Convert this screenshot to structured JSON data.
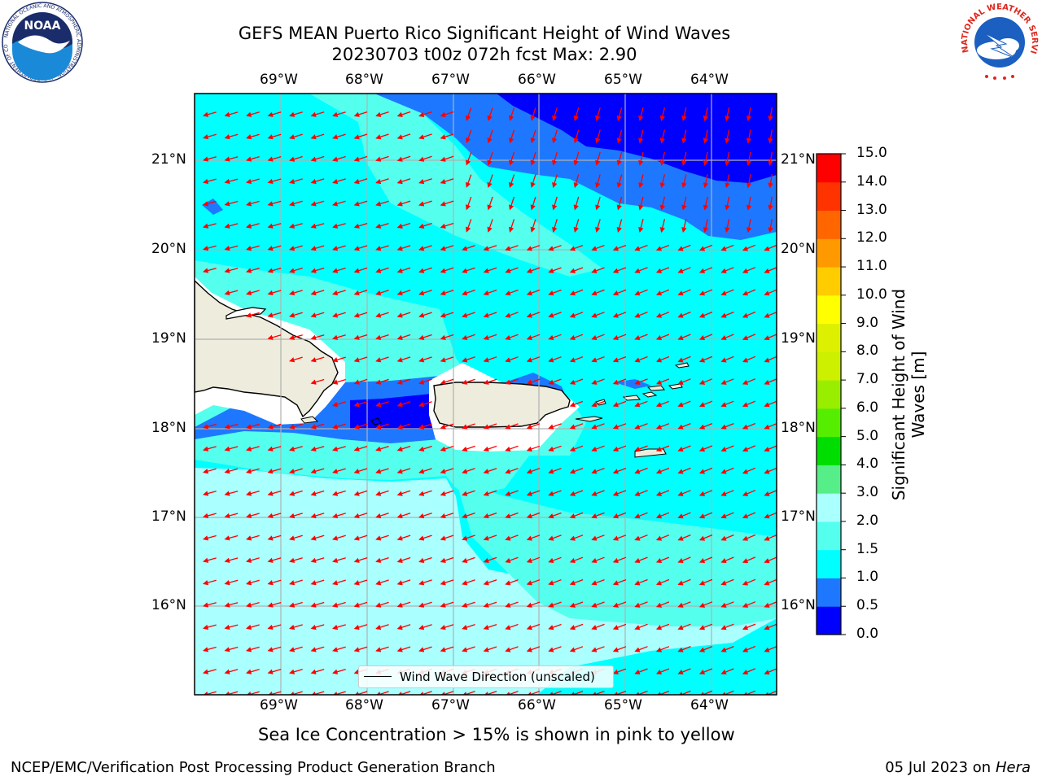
{
  "header": {
    "title_line1": "GEFS MEAN Puerto Rico Significant Height of Wind Waves",
    "title_line2": "20230703 t00z 072h fcst   Max: 2.90"
  },
  "map": {
    "lon_labels": [
      "69°W",
      "68°W",
      "67°W",
      "66°W",
      "65°W",
      "64°W"
    ],
    "lat_labels": [
      "21°N",
      "20°N",
      "19°N",
      "18°N",
      "17°N",
      "16°N"
    ],
    "lon_range": [
      -70.0,
      -63.25
    ],
    "lat_range": [
      15.0,
      21.75
    ],
    "gridlines": true,
    "arrow_color": "#ff0000",
    "wave_direction": "from east-northeast",
    "land_color": "#eeecdc",
    "land_labels": [
      "Hispaniola",
      "Puerto Rico",
      "Virgin Islands"
    ]
  },
  "legend": {
    "label": "Wind Wave Direction (unscaled)",
    "position": "bottom-center"
  },
  "colorbar": {
    "title": "Significant Height of Wind Waves [m]",
    "tick_labels": [
      "0.0",
      "0.5",
      "1.0",
      "1.5",
      "2.0",
      "3.0",
      "4.0",
      "5.0",
      "6.0",
      "7.0",
      "8.0",
      "9.0",
      "10.0",
      "11.0",
      "12.0",
      "13.0",
      "14.0",
      "15.0"
    ],
    "colors": [
      "#0000ff",
      "#1e78ff",
      "#00ffff",
      "#55ffee",
      "#aaffff",
      "#55ee88",
      "#00dd00",
      "#55ee00",
      "#99ee00",
      "#ccf000",
      "#ddf000",
      "#ffff00",
      "#ffcc00",
      "#ff9900",
      "#ff6600",
      "#ff3300",
      "#ff0000"
    ]
  },
  "notes": {
    "sea_ice": "Sea Ice Concentration > 15% is shown in pink to yellow"
  },
  "footer": {
    "left": "NCEP/EMC/Verification Post Processing Product Generation Branch",
    "right_date": "05 Jul 2023 on ",
    "right_machine": "Hera"
  },
  "logos": {
    "noaa_text": "NOAA",
    "noaa_ring": "NATIONAL OCEANIC AND ATMOSPHERIC ADMINISTRATION · U.S. DEPARTMENT OF COMMERCE",
    "nws_ring": "NATIONAL WEATHER SERVICE"
  },
  "chart_data": {
    "type": "heatmap",
    "title": "GEFS MEAN Puerto Rico Significant Height of Wind Waves",
    "subtitle": "20230703 t00z 072h fcst   Max: 2.90",
    "x_ticks": [
      "69°W",
      "68°W",
      "67°W",
      "66°W",
      "65°W",
      "64°W"
    ],
    "y_ticks": [
      "21°N",
      "20°N",
      "19°N",
      "18°N",
      "17°N",
      "16°N"
    ],
    "colorbar_label": "Significant Height of Wind Waves [m]",
    "levels": [
      0.0,
      0.5,
      1.0,
      1.5,
      2.0,
      3.0,
      4.0,
      5.0,
      6.0,
      7.0,
      8.0,
      9.0,
      10.0,
      11.0,
      12.0,
      13.0,
      14.0,
      15.0
    ],
    "max": 2.9,
    "regions": [
      {
        "area": "northeast corner (65.5°W–63.3°W, 20.8°N–21.7°N)",
        "range": "0.0-0.5"
      },
      {
        "area": "north-central band (67°W–63.3°W, 20.1°N–21.5°N)",
        "range": "0.5-1.0"
      },
      {
        "area": "Mona Passage / SW Puerto Rico coast",
        "range": "0.0-1.0"
      },
      {
        "area": "central open ocean",
        "range": "1.0-1.5"
      },
      {
        "area": "western & northern open ocean",
        "range": "1.5-2.0"
      },
      {
        "area": "southwest Caribbean (70°W–66.7°W, 15°N–17.5°N)",
        "range": "2.0-3.0"
      }
    ]
  }
}
